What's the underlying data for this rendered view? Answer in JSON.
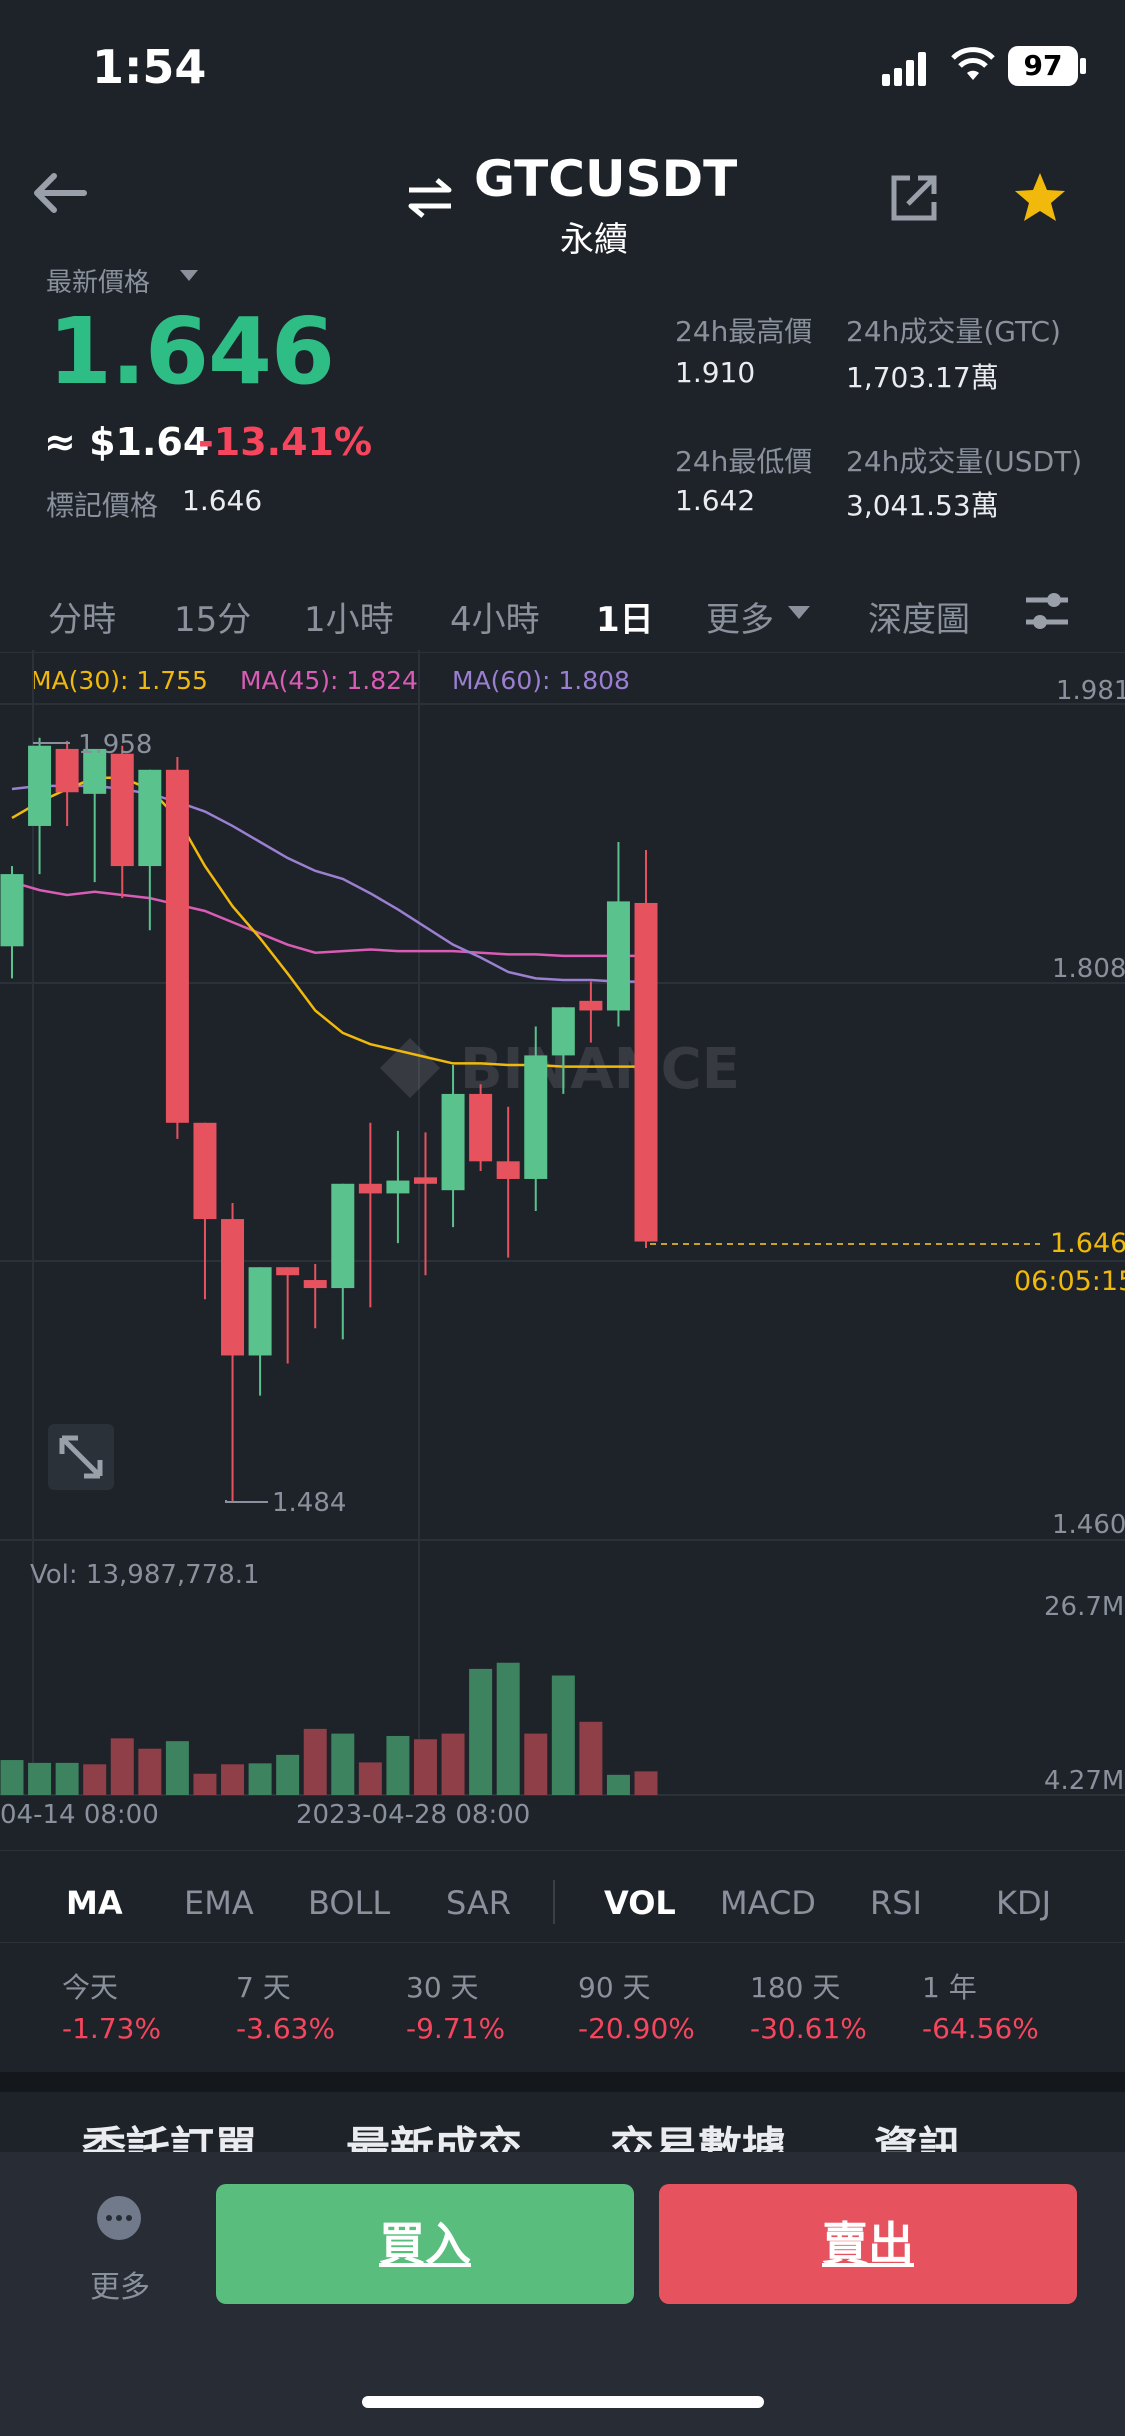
{
  "status_bar": {
    "time": "1:54",
    "battery": "97"
  },
  "header": {
    "symbol": "GTCUSDT",
    "contract_type": "永續"
  },
  "price": {
    "latest_label": "最新價格",
    "last_price": "1.646",
    "usd_approx": "≈ $1.64",
    "change_pct": "-13.41%",
    "mark_label": "標記價格",
    "mark_value": "1.646"
  },
  "stats": {
    "high_label": "24h最高價",
    "high_value": "1.910",
    "vol_base_label": "24h成交量(GTC)",
    "vol_base_value": "1,703.17萬",
    "low_label": "24h最低價",
    "low_value": "1.642",
    "vol_quote_label": "24h成交量(USDT)",
    "vol_quote_value": "3,041.53萬"
  },
  "timeframes": [
    "分時",
    "15分",
    "1小時",
    "4小時",
    "1日",
    "更多",
    "深度圖"
  ],
  "active_timeframe_index": 4,
  "ma_legend": {
    "ma30": "MA(30): 1.755",
    "ma45": "MA(45): 1.824",
    "ma60": "MA(60): 1.808"
  },
  "colors": {
    "up": "#5ac28d",
    "down": "#e6535f",
    "ma30": "#f0b90b",
    "ma45": "#d95cb5",
    "ma60": "#9b7fd1",
    "buy": "#58bd7d",
    "sell": "#e6535f"
  },
  "chart_data": {
    "type": "candlestick",
    "y_ticks": [
      "1.981",
      "1.808",
      "1.460"
    ],
    "ylim": [
      1.46,
      1.981
    ],
    "high_marker": "1.958",
    "low_marker": "1.484",
    "current_price_label": "1.646",
    "countdown_label": "06:05:15",
    "x_ticks": [
      "04-14 08:00",
      "2023-04-28 08:00"
    ],
    "candles": [
      {
        "o": 1.83,
        "h": 1.88,
        "l": 1.81,
        "c": 1.875
      },
      {
        "o": 1.905,
        "h": 1.96,
        "l": 1.875,
        "c": 1.955
      },
      {
        "o": 1.953,
        "h": 1.958,
        "l": 1.905,
        "c": 1.926
      },
      {
        "o": 1.925,
        "h": 1.95,
        "l": 1.87,
        "c": 1.953
      },
      {
        "o": 1.95,
        "h": 1.955,
        "l": 1.86,
        "c": 1.88
      },
      {
        "o": 1.88,
        "h": 1.94,
        "l": 1.84,
        "c": 1.94
      },
      {
        "o": 1.94,
        "h": 1.948,
        "l": 1.71,
        "c": 1.72
      },
      {
        "o": 1.72,
        "h": 1.72,
        "l": 1.61,
        "c": 1.66
      },
      {
        "o": 1.66,
        "h": 1.67,
        "l": 1.484,
        "c": 1.575
      },
      {
        "o": 1.575,
        "h": 1.63,
        "l": 1.55,
        "c": 1.63
      },
      {
        "o": 1.63,
        "h": 1.63,
        "l": 1.57,
        "c": 1.625
      },
      {
        "o": 1.622,
        "h": 1.632,
        "l": 1.592,
        "c": 1.617
      },
      {
        "o": 1.617,
        "h": 1.682,
        "l": 1.585,
        "c": 1.682
      },
      {
        "o": 1.682,
        "h": 1.72,
        "l": 1.605,
        "c": 1.676
      },
      {
        "o": 1.676,
        "h": 1.715,
        "l": 1.645,
        "c": 1.684
      },
      {
        "o": 1.686,
        "h": 1.714,
        "l": 1.625,
        "c": 1.682
      },
      {
        "o": 1.678,
        "h": 1.756,
        "l": 1.655,
        "c": 1.738
      },
      {
        "o": 1.738,
        "h": 1.744,
        "l": 1.69,
        "c": 1.696
      },
      {
        "o": 1.696,
        "h": 1.73,
        "l": 1.636,
        "c": 1.685
      },
      {
        "o": 1.685,
        "h": 1.78,
        "l": 1.665,
        "c": 1.762
      },
      {
        "o": 1.762,
        "h": 1.792,
        "l": 1.738,
        "c": 1.792
      },
      {
        "o": 1.796,
        "h": 1.808,
        "l": 1.77,
        "c": 1.79
      },
      {
        "o": 1.79,
        "h": 1.895,
        "l": 1.78,
        "c": 1.858
      },
      {
        "o": 1.857,
        "h": 1.89,
        "l": 1.642,
        "c": 1.646
      }
    ],
    "ma30": [
      1.91,
      1.92,
      1.928,
      1.935,
      1.935,
      1.928,
      1.91,
      1.88,
      1.855,
      1.835,
      1.813,
      1.79,
      1.776,
      1.769,
      1.765,
      1.761,
      1.757,
      1.757,
      1.756,
      1.756,
      1.755,
      1.755,
      1.755,
      1.755
    ],
    "ma45": [
      1.87,
      1.865,
      1.862,
      1.864,
      1.862,
      1.86,
      1.856,
      1.852,
      1.845,
      1.838,
      1.831,
      1.826,
      1.827,
      1.828,
      1.827,
      1.827,
      1.827,
      1.826,
      1.825,
      1.825,
      1.824,
      1.824,
      1.824,
      1.824
    ],
    "ma60": [
      1.928,
      1.93,
      1.93,
      1.93,
      1.928,
      1.925,
      1.92,
      1.914,
      1.905,
      1.895,
      1.885,
      1.877,
      1.872,
      1.863,
      1.853,
      1.842,
      1.831,
      1.823,
      1.814,
      1.81,
      1.809,
      1.809,
      1.808,
      1.808
    ],
    "volume": {
      "label": "Vol: 13,987,778.1",
      "y_ticks": [
        "26.7M",
        "4.27M"
      ],
      "ylim": [
        0,
        30.7
      ],
      "values": [
        7.4,
        6.8,
        6.8,
        6.5,
        12.0,
        9.8,
        11.4,
        4.5,
        6.5,
        6.7,
        8.5,
        14.0,
        13.0,
        6.9,
        12.5,
        11.8,
        13.0,
        26.7,
        28.0,
        13.0,
        25.3,
        15.5,
        4.27,
        5.0
      ],
      "up": [
        true,
        true,
        true,
        false,
        false,
        false,
        true,
        false,
        false,
        true,
        true,
        false,
        true,
        false,
        true,
        false,
        false,
        true,
        true,
        false,
        true,
        false,
        true,
        false
      ]
    }
  },
  "indicators": [
    "MA",
    "EMA",
    "BOLL",
    "SAR",
    "VOL",
    "MACD",
    "RSI",
    "KDJ"
  ],
  "performance": [
    {
      "label": "今天",
      "value": "-1.73%"
    },
    {
      "label": "7 天",
      "value": "-3.63%"
    },
    {
      "label": "30 天",
      "value": "-9.71%"
    },
    {
      "label": "90 天",
      "value": "-20.90%"
    },
    {
      "label": "180 天",
      "value": "-30.61%"
    },
    {
      "label": "1 年",
      "value": "-64.56%"
    }
  ],
  "sections": [
    "委託訂單",
    "最新成交",
    "交易數據",
    "資訊"
  ],
  "footer": {
    "more_label": "更多",
    "buy_label": "買入",
    "sell_label": "賣出"
  }
}
